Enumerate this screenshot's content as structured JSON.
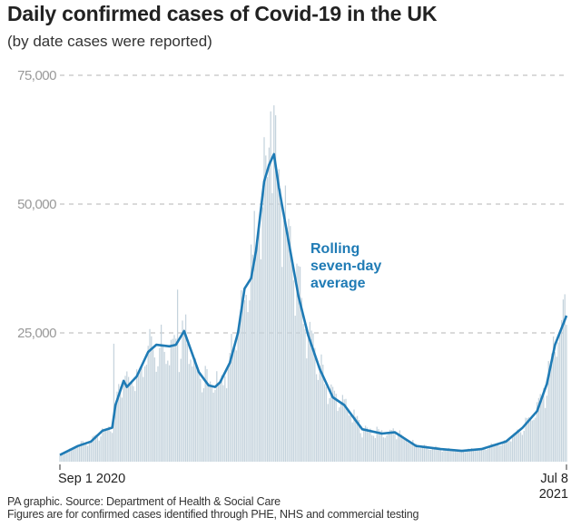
{
  "title": "Daily confirmed cases of Covid-19 in the UK",
  "subtitle": "(by date cases were reported)",
  "footer": {
    "source": "PA graphic. Source: Department of Health & Social Care",
    "note": "Figures are for confirmed cases identified through PHE, NHS and commercial testing"
  },
  "chart_data": {
    "type": "bar+line",
    "title": "Daily confirmed cases of Covid-19 in the UK",
    "subtitle": "(by date cases were reported)",
    "xlim": [
      "2020-09-01",
      "2021-07-08"
    ],
    "ylim": [
      0,
      75000
    ],
    "yticks": [
      25000,
      50000,
      75000
    ],
    "ytick_labels": [
      "25,000",
      "50,000",
      "75,000"
    ],
    "xtick_labels": [
      {
        "date": "2020-09-01",
        "label": "Sep 1 2020"
      },
      {
        "date": "2021-07-08",
        "label": "Jul 8",
        "label2": "2021"
      }
    ],
    "grid": "horizontal dashed",
    "annotation": {
      "lines": [
        "Rolling",
        "seven-day",
        "average"
      ]
    },
    "colors": {
      "bars": "#c5d3dd",
      "line": "#1f7bb5",
      "grid": "#b5b5b5"
    },
    "series": [
      {
        "name": "Rolling seven-day average",
        "kind": "line",
        "points": [
          [
            "2020-09-01",
            1300
          ],
          [
            "2020-09-12",
            3050
          ],
          [
            "2020-09-20",
            3900
          ],
          [
            "2020-09-27",
            6000
          ],
          [
            "2020-10-03",
            6600
          ],
          [
            "2020-10-05",
            11000
          ],
          [
            "2020-10-10",
            15700
          ],
          [
            "2020-10-12",
            14500
          ],
          [
            "2020-10-18",
            16550
          ],
          [
            "2020-10-25",
            21300
          ],
          [
            "2020-10-30",
            22700
          ],
          [
            "2020-11-07",
            22400
          ],
          [
            "2020-11-11",
            22700
          ],
          [
            "2020-11-16",
            25350
          ],
          [
            "2020-11-25",
            17400
          ],
          [
            "2020-12-01",
            14800
          ],
          [
            "2020-12-05",
            14500
          ],
          [
            "2020-12-08",
            15400
          ],
          [
            "2020-12-14",
            19200
          ],
          [
            "2020-12-19",
            25050
          ],
          [
            "2020-12-23",
            33600
          ],
          [
            "2020-12-27",
            35600
          ],
          [
            "2020-12-30",
            40900
          ],
          [
            "2021-01-04",
            54400
          ],
          [
            "2021-01-07",
            57600
          ],
          [
            "2021-01-10",
            59700
          ],
          [
            "2021-01-13",
            53200
          ],
          [
            "2021-01-19",
            42650
          ],
          [
            "2021-01-25",
            32100
          ],
          [
            "2021-01-31",
            24470
          ],
          [
            "2021-02-07",
            18000
          ],
          [
            "2021-02-15",
            12500
          ],
          [
            "2021-02-22",
            11000
          ],
          [
            "2021-03-05",
            6300
          ],
          [
            "2021-03-17",
            5450
          ],
          [
            "2021-03-25",
            5700
          ],
          [
            "2021-04-07",
            3050
          ],
          [
            "2021-04-22",
            2450
          ],
          [
            "2021-05-05",
            2100
          ],
          [
            "2021-05-17",
            2450
          ],
          [
            "2021-06-01",
            3900
          ],
          [
            "2021-06-11",
            6550
          ],
          [
            "2021-06-20",
            9800
          ],
          [
            "2021-06-26",
            15100
          ],
          [
            "2021-07-01",
            22700
          ],
          [
            "2021-07-08",
            28350
          ]
        ]
      },
      {
        "name": "Daily cases",
        "kind": "bar",
        "notable_values": [
          [
            "2020-10-04",
            22900
          ],
          [
            "2020-11-12",
            33400
          ],
          [
            "2021-01-08",
            68000
          ],
          [
            "2021-07-07",
            32500
          ]
        ]
      }
    ]
  }
}
